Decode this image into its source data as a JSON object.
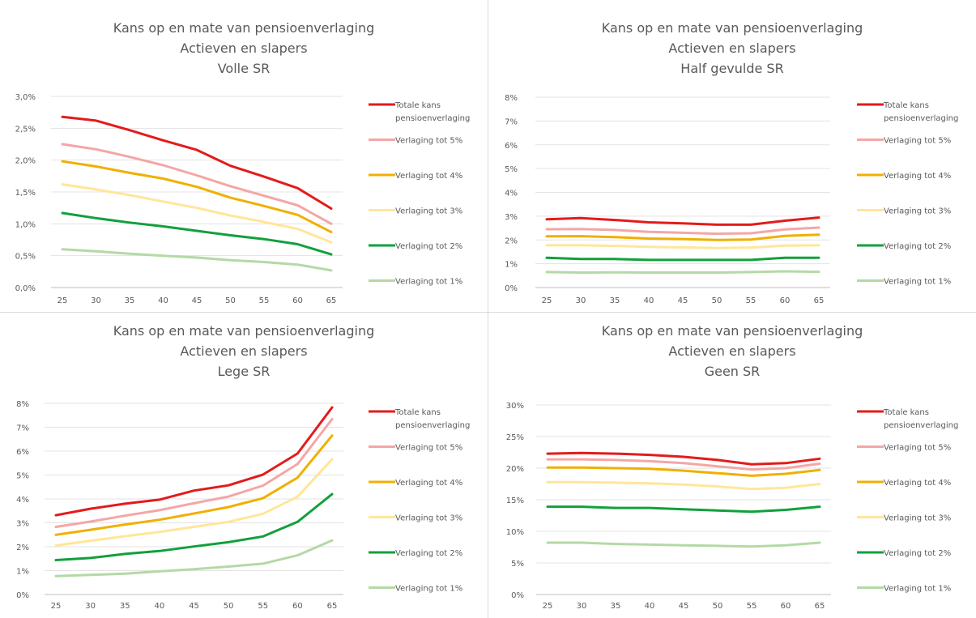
{
  "chart_data": [
    {
      "type": "line",
      "title": [
        "Kans op en mate van pensioenverlaging",
        "Actieven en slapers",
        "Volle SR"
      ],
      "x": [
        25,
        30,
        35,
        40,
        45,
        50,
        55,
        60,
        65
      ],
      "y_ticks": [
        "0,0%",
        "0,5%",
        "1,0%",
        "1,5%",
        "2,0%",
        "2,5%",
        "3,0%"
      ],
      "ylim": [
        0,
        3.0
      ],
      "y_unit": "%",
      "legend_position": "right",
      "series": [
        {
          "name": "Totale kans pensioenverlaging",
          "color": "#e31b1b",
          "values": [
            2.68,
            2.62,
            2.47,
            2.31,
            2.16,
            1.91,
            1.74,
            1.56,
            1.24
          ]
        },
        {
          "name": "Verlaging tot 5%",
          "color": "#f4a6a6",
          "values": [
            2.25,
            2.17,
            2.05,
            1.92,
            1.76,
            1.59,
            1.44,
            1.29,
            1.0
          ]
        },
        {
          "name": "Verlaging tot 4%",
          "color": "#f0b000",
          "values": [
            1.98,
            1.9,
            1.8,
            1.71,
            1.58,
            1.41,
            1.28,
            1.14,
            0.87
          ]
        },
        {
          "name": "Verlaging tot 3%",
          "color": "#ffe699",
          "values": [
            1.62,
            1.54,
            1.45,
            1.35,
            1.25,
            1.13,
            1.03,
            0.92,
            0.71
          ]
        },
        {
          "name": "Verlaging tot 2%",
          "color": "#12a03c",
          "values": [
            1.17,
            1.09,
            1.02,
            0.96,
            0.89,
            0.82,
            0.76,
            0.68,
            0.52
          ]
        },
        {
          "name": "Verlaging tot 1%",
          "color": "#b4d9a6",
          "values": [
            0.6,
            0.57,
            0.53,
            0.5,
            0.47,
            0.43,
            0.4,
            0.36,
            0.27
          ]
        }
      ]
    },
    {
      "type": "line",
      "title": [
        "Kans op en mate van pensioenverlaging",
        "Actieven en slapers",
        "Half gevulde SR"
      ],
      "x": [
        25,
        30,
        35,
        40,
        45,
        50,
        55,
        60,
        65
      ],
      "y_ticks": [
        "0%",
        "1%",
        "2%",
        "3%",
        "4%",
        "5%",
        "6%",
        "7%",
        "8%"
      ],
      "ylim": [
        0,
        8
      ],
      "y_unit": "%",
      "legend_position": "right",
      "series": [
        {
          "name": "Totale kans pensioenverlaging",
          "color": "#e31b1b",
          "values": [
            2.87,
            2.92,
            2.84,
            2.74,
            2.7,
            2.64,
            2.64,
            2.81,
            2.94
          ]
        },
        {
          "name": "Verlaging tot 5%",
          "color": "#f4a6a6",
          "values": [
            2.45,
            2.46,
            2.42,
            2.34,
            2.3,
            2.26,
            2.28,
            2.44,
            2.52
          ]
        },
        {
          "name": "Verlaging tot 4%",
          "color": "#f0b000",
          "values": [
            2.15,
            2.16,
            2.12,
            2.06,
            2.04,
            2.0,
            2.02,
            2.17,
            2.22
          ]
        },
        {
          "name": "Verlaging tot 3%",
          "color": "#ffe699",
          "values": [
            1.78,
            1.78,
            1.75,
            1.71,
            1.69,
            1.66,
            1.68,
            1.76,
            1.78
          ]
        },
        {
          "name": "Verlaging tot 2%",
          "color": "#12a03c",
          "values": [
            1.25,
            1.2,
            1.2,
            1.16,
            1.16,
            1.16,
            1.16,
            1.25,
            1.25
          ]
        },
        {
          "name": "Verlaging tot 1%",
          "color": "#b4d9a6",
          "values": [
            0.65,
            0.63,
            0.64,
            0.63,
            0.63,
            0.63,
            0.65,
            0.68,
            0.66
          ]
        }
      ]
    },
    {
      "type": "line",
      "title": [
        "Kans op en mate van pensioenverlaging",
        "Actieven en slapers",
        "Lege SR"
      ],
      "x": [
        25,
        30,
        35,
        40,
        45,
        50,
        55,
        60,
        65
      ],
      "y_ticks": [
        "0%",
        "1%",
        "2%",
        "3%",
        "4%",
        "5%",
        "6%",
        "7%",
        "8%"
      ],
      "ylim": [
        0,
        8
      ],
      "y_unit": "%",
      "legend_position": "right",
      "series": [
        {
          "name": "Totale kans pensioenverlaging",
          "color": "#e31b1b",
          "values": [
            3.32,
            3.59,
            3.8,
            3.97,
            4.35,
            4.57,
            5.02,
            5.9,
            7.83
          ]
        },
        {
          "name": "Verlaging tot 5%",
          "color": "#f4a6a6",
          "values": [
            2.83,
            3.05,
            3.3,
            3.53,
            3.82,
            4.1,
            4.56,
            5.46,
            7.34
          ]
        },
        {
          "name": "Verlaging tot 4%",
          "color": "#f0b000",
          "values": [
            2.5,
            2.71,
            2.93,
            3.13,
            3.39,
            3.66,
            4.03,
            4.89,
            6.65
          ]
        },
        {
          "name": "Verlaging tot 3%",
          "color": "#ffe699",
          "values": [
            2.05,
            2.25,
            2.44,
            2.62,
            2.83,
            3.04,
            3.38,
            4.09,
            5.66
          ]
        },
        {
          "name": "Verlaging tot 2%",
          "color": "#12a03c",
          "values": [
            1.44,
            1.53,
            1.7,
            1.82,
            2.01,
            2.19,
            2.43,
            3.04,
            4.2
          ]
        },
        {
          "name": "Verlaging tot 1%",
          "color": "#b4d9a6",
          "values": [
            0.77,
            0.82,
            0.87,
            0.97,
            1.06,
            1.17,
            1.29,
            1.64,
            2.26
          ]
        }
      ]
    },
    {
      "type": "line",
      "title": [
        "Kans op en mate van pensioenverlaging",
        "Actieven en slapers",
        "Geen SR"
      ],
      "x": [
        25,
        30,
        35,
        40,
        45,
        50,
        55,
        60,
        65
      ],
      "y_ticks": [
        "0%",
        "5%",
        "10%",
        "15%",
        "20%",
        "25%",
        "30%"
      ],
      "ylim": [
        0,
        30
      ],
      "y_unit": "%",
      "legend_position": "right",
      "series": [
        {
          "name": "Totale kans pensioenverlaging",
          "color": "#e31b1b",
          "values": [
            22.3,
            22.4,
            22.3,
            22.1,
            21.8,
            21.3,
            20.6,
            20.8,
            21.5
          ]
        },
        {
          "name": "Verlaging tot 5%",
          "color": "#f4a6a6",
          "values": [
            21.4,
            21.4,
            21.3,
            21.1,
            20.8,
            20.3,
            19.8,
            20.0,
            20.7
          ]
        },
        {
          "name": "Verlaging tot 4%",
          "color": "#f0b000",
          "values": [
            20.1,
            20.1,
            20.0,
            19.9,
            19.6,
            19.2,
            18.8,
            19.1,
            19.7
          ]
        },
        {
          "name": "Verlaging tot 3%",
          "color": "#ffe699",
          "values": [
            17.8,
            17.8,
            17.7,
            17.6,
            17.4,
            17.1,
            16.7,
            16.9,
            17.5
          ]
        },
        {
          "name": "Verlaging tot 2%",
          "color": "#12a03c",
          "values": [
            13.9,
            13.9,
            13.7,
            13.7,
            13.5,
            13.3,
            13.1,
            13.4,
            13.9
          ]
        },
        {
          "name": "Verlaging tot 1%",
          "color": "#b4d9a6",
          "values": [
            8.2,
            8.2,
            8.0,
            7.9,
            7.8,
            7.7,
            7.6,
            7.8,
            8.2
          ]
        }
      ]
    }
  ]
}
